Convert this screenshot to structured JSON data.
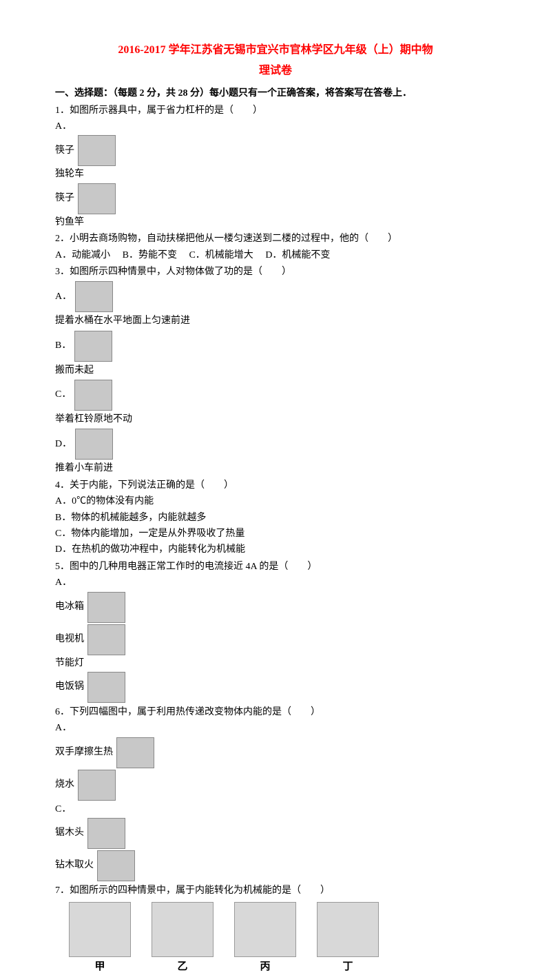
{
  "title_line1": "2016-2017 学年江苏省无锡市宜兴市官林学区九年级（上）期中物",
  "title_line2": "理试卷",
  "section1_header": "一、选择题：（每题 2 分，共 28 分）每小题只有一个正确答案，将答案写在答卷上．",
  "q1": {
    "stem": "1．如图所示器具中，属于省力杠杆的是（　　）",
    "A": "A．",
    "A_txt": "筷子",
    "B_txt": "独轮车",
    "C_txt": "筷子",
    "D_txt": "钓鱼竿"
  },
  "q2": {
    "stem": "2．小明去商场购物，自动扶梯把他从一楼匀速送到二楼的过程中，他的（　　）",
    "A": "A．动能减小",
    "B": "B．势能不变",
    "C": "C．机械能增大",
    "D": "D．机械能不变"
  },
  "q3": {
    "stem": "3．如图所示四种情景中，人对物体做了功的是（　　）",
    "A": "A．",
    "A_txt": "提着水桶在水平地面上匀速前进",
    "B": "B．",
    "B_txt": "搬而未起",
    "C": "C．",
    "C_txt": "举着杠铃原地不动",
    "D": "D．",
    "D_txt": "推着小车前进"
  },
  "q4": {
    "stem": "4．关于内能，下列说法正确的是（　　）",
    "A": "A．0℃的物体没有内能",
    "B": "B．物体的机械能越多，内能就越多",
    "C": "C．物体内能增加，一定是从外界吸收了热量",
    "D": "D．在热机的做功冲程中，内能转化为机械能"
  },
  "q5": {
    "stem": "5．图中的几种用电器正常工作时的电流接近 4A 的是（　　）",
    "A": "A．",
    "A_txt": "电冰箱",
    "B_txt": "电视机",
    "C_txt": "节能灯",
    "D_txt": "电饭锅"
  },
  "q6": {
    "stem": "6．下列四幅图中，属于利用热传递改变物体内能的是（　　）",
    "A": "A．",
    "A_txt": "双手摩擦生热",
    "B_txt": "烧水",
    "C": "C．",
    "C_txt": "锯木头",
    "D_txt": "钻木取火"
  },
  "q7": {
    "stem": "7．如图所示的四种情景中，属于内能转化为机械能的是（　　）"
  },
  "fig_labels": {
    "a": "甲",
    "b": "乙",
    "c": "丙",
    "d": "丁"
  }
}
